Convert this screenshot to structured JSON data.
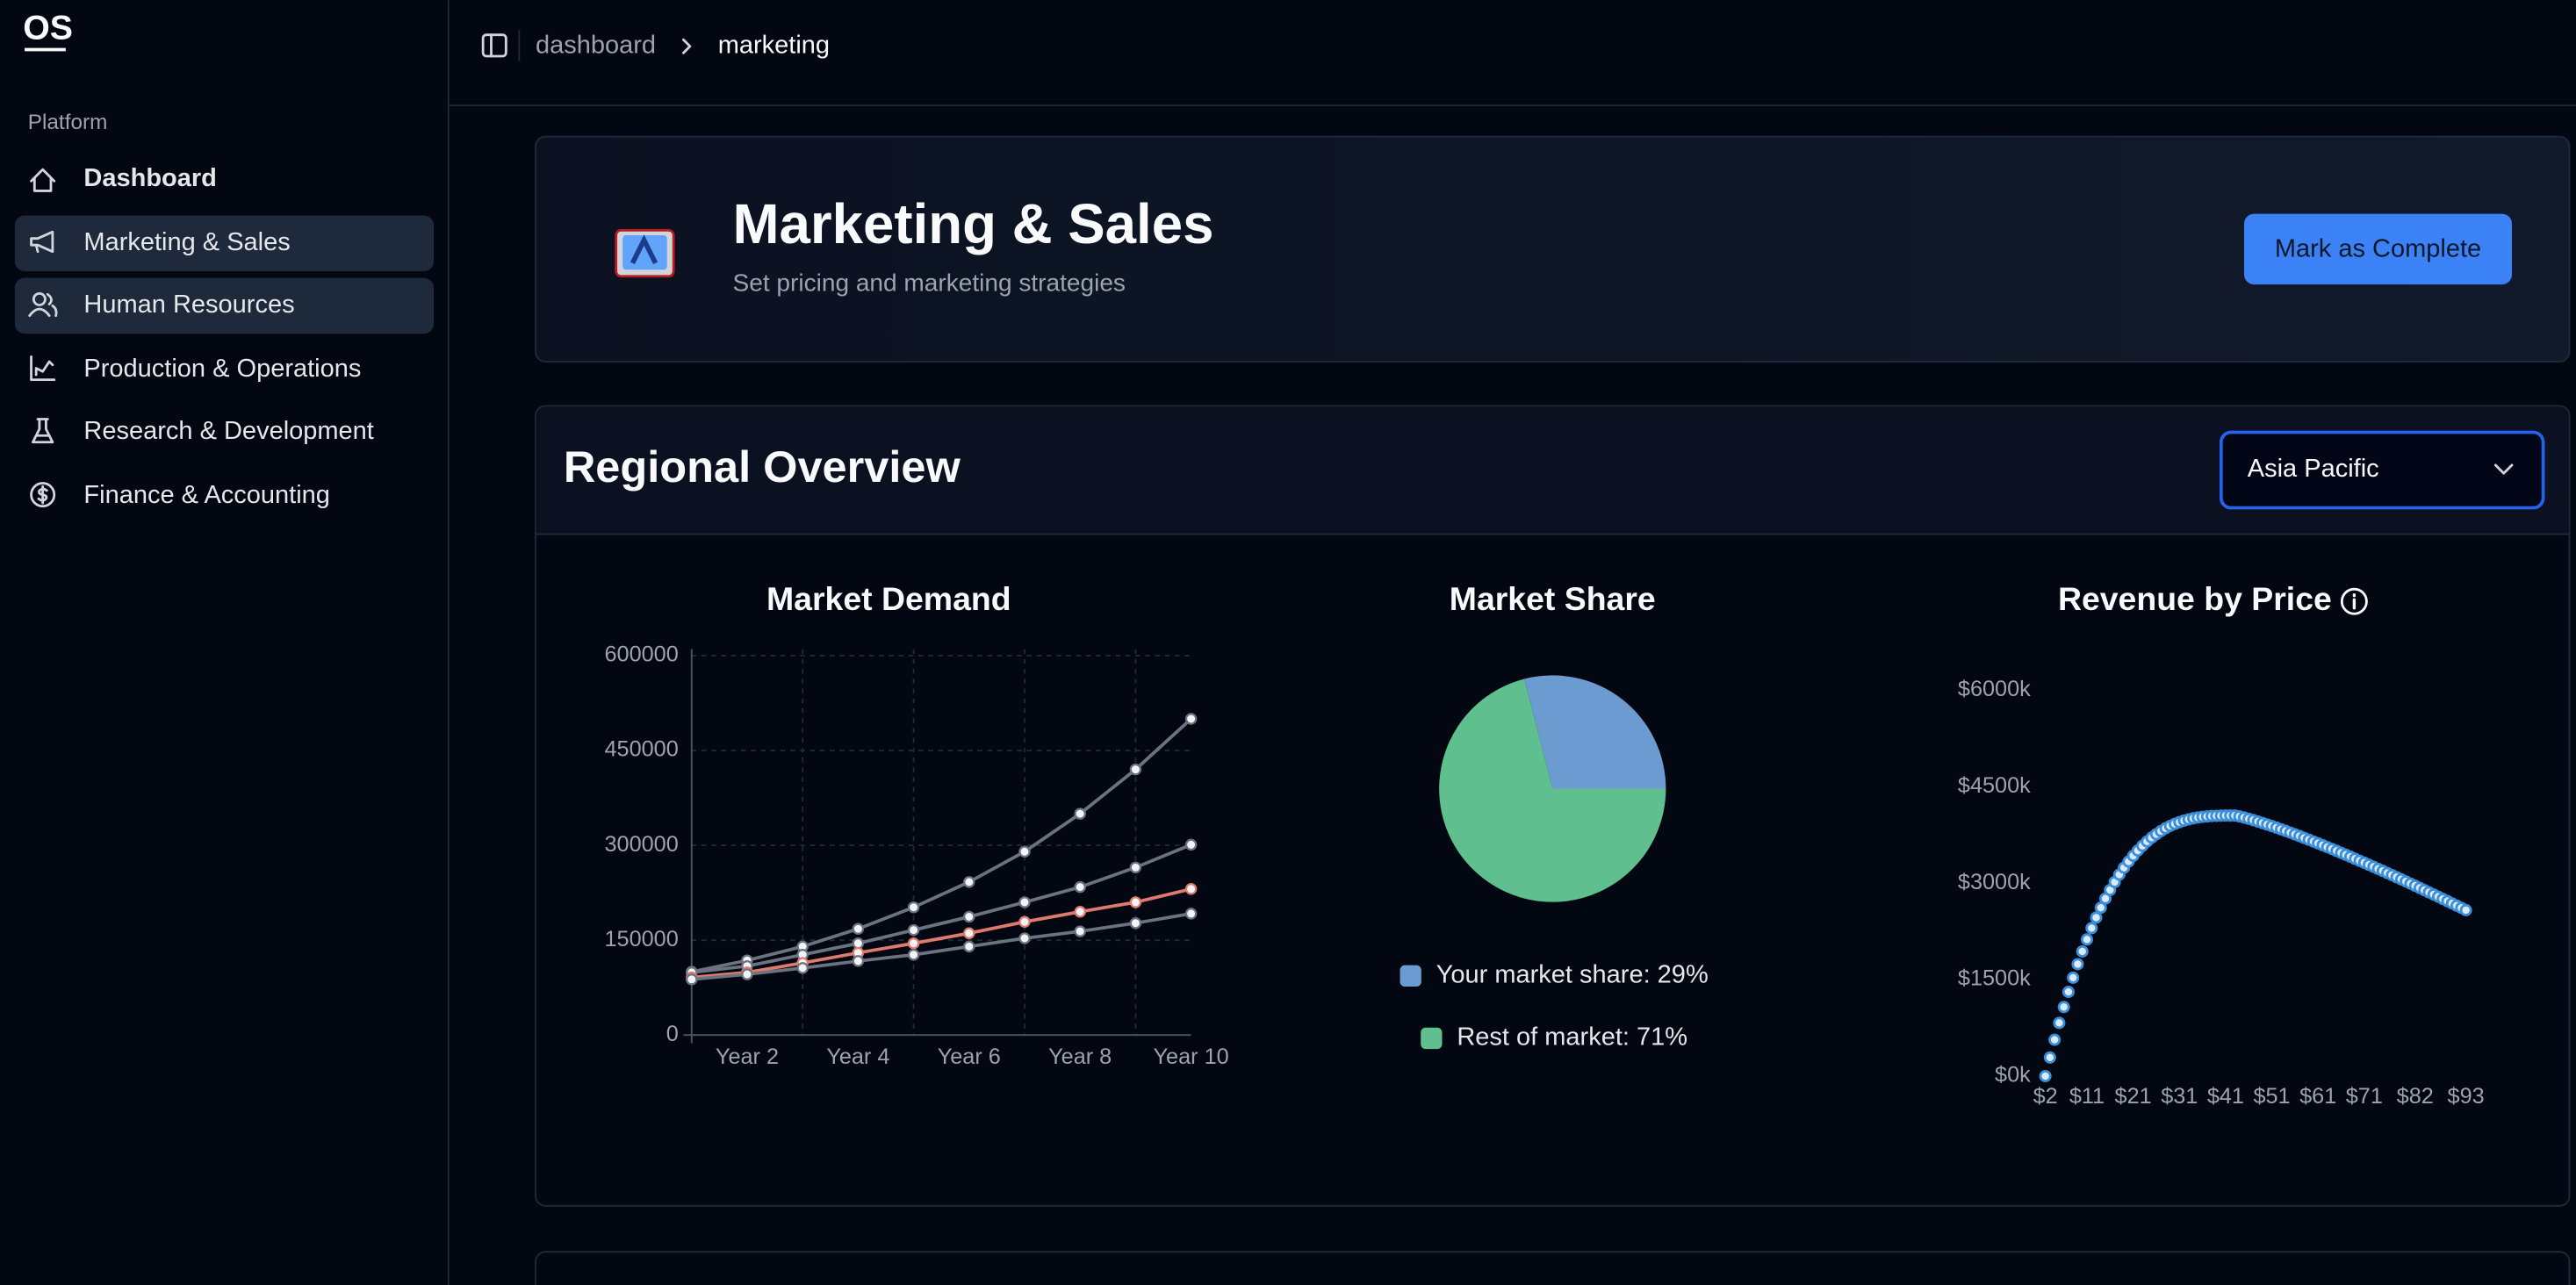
{
  "sidebar": {
    "logo": "OS",
    "group": "Platform",
    "items": [
      "Dashboard",
      "Marketing & Sales",
      "Human Resources",
      "Production & Operations",
      "Research & Development",
      "Finance & Accounting"
    ]
  },
  "breadcrumb": [
    "dashboard",
    "marketing"
  ],
  "header": {
    "title": "Marketing & Sales",
    "subtitle": "Set pricing and marketing strategies",
    "button": "Mark as Complete"
  },
  "section": {
    "title": "Regional Overview",
    "select": "Asia Pacific"
  },
  "chart_data": [
    {
      "type": "line",
      "title": "Market Demand",
      "categories": [
        null,
        "Year 2",
        null,
        "Year 4",
        null,
        "Year 6",
        null,
        "Year 8",
        null,
        "Year 10"
      ],
      "series": [
        {
          "color": "#6b7280",
          "values": [
            100000,
            118000,
            140000,
            168000,
            202000,
            242000,
            290000,
            350000,
            420000,
            500000
          ]
        },
        {
          "color": "#6b7280",
          "values": [
            99000,
            109000,
            127000,
            145000,
            166000,
            187000,
            210000,
            234000,
            265000,
            301000
          ]
        },
        {
          "color": "#e07a6e",
          "values": [
            91000,
            99000,
            114000,
            130000,
            145000,
            161000,
            179000,
            195000,
            210000,
            231000
          ]
        },
        {
          "color": "#6b7280",
          "values": [
            88000,
            96000,
            106000,
            117000,
            127000,
            140000,
            153000,
            164000,
            177000,
            192000
          ]
        }
      ],
      "ylim": [
        0,
        600000
      ],
      "yticks": [
        0,
        150000,
        300000,
        450000,
        600000
      ],
      "grid": true
    },
    {
      "type": "pie",
      "title": "Market Share",
      "categories": [
        "Your market share: 29%",
        "Rest of market: 71%"
      ],
      "values": [
        29,
        71
      ],
      "colors": [
        "#6b9bd1",
        "#5fbf8f"
      ]
    },
    {
      "type": "scatter",
      "title": "Revenue by Price",
      "color": "#3b8fd9",
      "x": [
        2,
        3,
        4,
        5,
        6,
        7,
        8,
        9,
        10,
        11,
        12,
        13,
        14,
        15,
        16,
        17,
        18,
        19,
        20,
        21,
        22,
        23,
        24,
        25,
        26,
        27,
        28,
        29,
        30,
        31,
        32,
        33,
        34,
        35,
        36,
        37,
        38,
        39,
        40,
        41,
        42,
        43,
        44,
        45,
        46,
        47,
        48,
        49,
        50,
        51,
        52,
        53,
        54,
        55,
        56,
        57,
        58,
        59,
        60,
        61,
        62,
        63,
        64,
        65,
        66,
        67,
        68,
        69,
        70,
        71,
        72,
        73,
        74,
        75,
        76,
        77,
        78,
        79,
        80,
        81,
        82,
        83,
        84,
        85,
        86,
        87,
        88,
        89,
        90,
        91,
        92,
        93
      ],
      "values": [
        0,
        289,
        565,
        826,
        1074,
        1309,
        1530,
        1740,
        1938,
        2124,
        2300,
        2464,
        2617,
        2760,
        2893,
        3017,
        3132,
        3238,
        3335,
        3424,
        3506,
        3580,
        3647,
        3707,
        3761,
        3809,
        3852,
        3889,
        3921,
        3948,
        3972,
        3991,
        4007,
        4020,
        4030,
        4037,
        4043,
        4046,
        4048,
        4050,
        4050,
        4050,
        4037,
        4019,
        4000,
        3979,
        3957,
        3935,
        3911,
        3887,
        3862,
        3837,
        3811,
        3785,
        3758,
        3731,
        3703,
        3675,
        3647,
        3619,
        3590,
        3560,
        3531,
        3501,
        3471,
        3441,
        3410,
        3379,
        3348,
        3317,
        3285,
        3254,
        3222,
        3190,
        3157,
        3125,
        3092,
        3059,
        3026,
        2992,
        2959,
        2925,
        2891,
        2857,
        2823,
        2789,
        2754,
        2720,
        2685,
        2650,
        2615,
        2580
      ],
      "xlim": [
        2,
        93
      ],
      "xticks": [
        {
          "value": 2,
          "label": "$2"
        },
        {
          "value": 11,
          "label": "$11"
        },
        {
          "value": 21,
          "label": "$21"
        },
        {
          "value": 31,
          "label": "$31"
        },
        {
          "value": 41,
          "label": "$41"
        },
        {
          "value": 51,
          "label": "$51"
        },
        {
          "value": 61,
          "label": "$61"
        },
        {
          "value": 71,
          "label": "$71"
        },
        {
          "value": 82,
          "label": "$82"
        },
        {
          "value": 93,
          "label": "$93"
        }
      ],
      "ylim": [
        0,
        6000
      ],
      "yticks": [
        {
          "value": 0,
          "label": "$0k"
        },
        {
          "value": 1500,
          "label": "$1500k"
        },
        {
          "value": 3000,
          "label": "$3000k"
        },
        {
          "value": 4500,
          "label": "$4500k"
        },
        {
          "value": 6000,
          "label": "$6000k"
        }
      ]
    }
  ]
}
